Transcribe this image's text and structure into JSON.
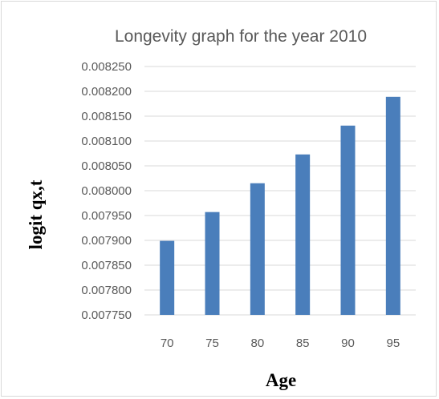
{
  "chart_data": {
    "type": "bar",
    "title": "Longevity graph for the year 2010",
    "xlabel": "Age",
    "ylabel": "logit qx,t",
    "categories": [
      "70",
      "75",
      "80",
      "85",
      "90",
      "95"
    ],
    "values": [
      0.007899,
      0.007957,
      0.008015,
      0.008073,
      0.008131,
      0.008189
    ],
    "ylim": [
      0.00775,
      0.00825
    ],
    "yticks": [
      "0.008250",
      "0.008200",
      "0.008150",
      "0.008100",
      "0.008050",
      "0.008000",
      "0.007950",
      "0.007900",
      "0.007850",
      "0.007800",
      "0.007750"
    ],
    "grid": true,
    "bar_color": "#4a7ebb"
  }
}
